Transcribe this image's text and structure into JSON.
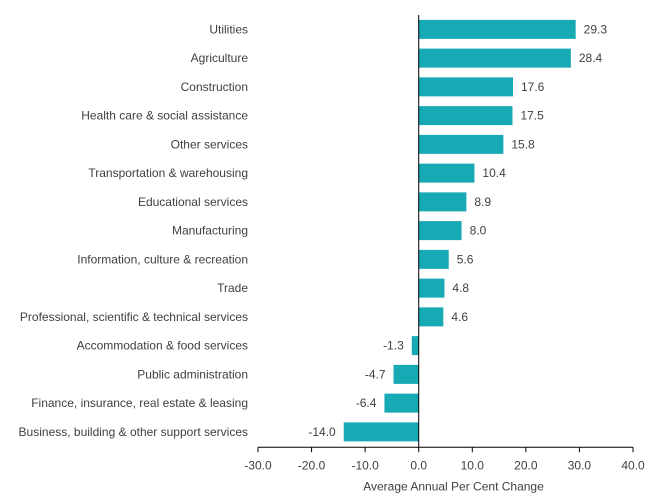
{
  "chart_data": {
    "type": "bar",
    "orientation": "horizontal",
    "categories": [
      "Utilities",
      "Agriculture",
      "Construction",
      "Health care & social assistance",
      "Other services",
      "Transportation & warehousing",
      "Educational services",
      "Manufacturing",
      "Information, culture & recreation",
      "Trade",
      "Professional, scientific & technical services",
      "Accommodation & food services",
      "Public administration",
      "Finance, insurance, real estate & leasing",
      "Business, building & other support services"
    ],
    "values": [
      29.3,
      28.4,
      17.6,
      17.5,
      15.8,
      10.4,
      8.9,
      8.0,
      5.6,
      4.8,
      4.6,
      -1.3,
      -4.7,
      -6.4,
      -14.0
    ],
    "value_labels": [
      "29.3",
      "28.4",
      "17.6",
      "17.5",
      "15.8",
      "10.4",
      "8.9",
      "8.0",
      "5.6",
      "4.8",
      "4.6",
      "-1.3",
      "-4.7",
      "-6.4",
      "-14.0"
    ],
    "xlabel": "Average Annual Per Cent Change",
    "xlim": [
      -30,
      40
    ],
    "xticks": [
      "-30.0",
      "-20.0",
      "-10.0",
      "0.0",
      "10.0",
      "20.0",
      "30.0",
      "40.0"
    ],
    "grid": false,
    "bar_color": "#17A9B4"
  }
}
